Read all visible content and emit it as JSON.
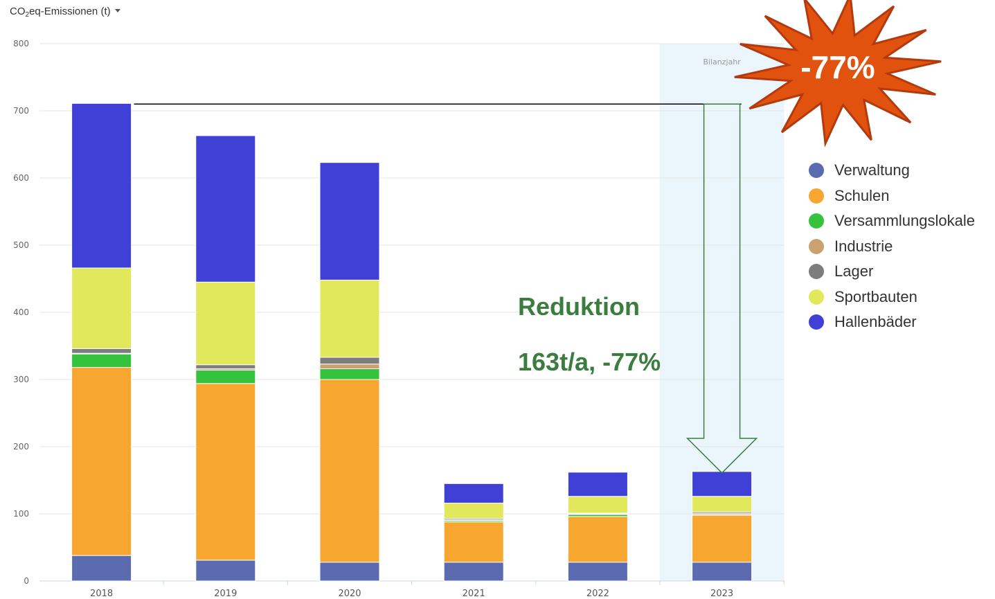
{
  "metric_selector": {
    "prefix": "CO",
    "subscript": "2",
    "suffix": "eq-Emissionen (t)"
  },
  "colors": {
    "Verwaltung": "#5c6bb0",
    "Schulen": "#f7a730",
    "Versammlungslokale": "#35c23d",
    "Industrie": "#c9a26f",
    "Lager": "#7d7d7d",
    "Sportbauten": "#e1e85c",
    "Hallenbäder": "#4040d6",
    "highlight_band": "#eaf6fb",
    "annotation_green": "#3a7d3e",
    "starburst": "#e2520f",
    "starburst_border": "#b23a0e"
  },
  "annotation": {
    "starburst_text": "-77%",
    "reduction_title": "Reduktion",
    "reduction_value": "163t/a, -77%",
    "reference_value": 710
  },
  "chart_data": {
    "type": "bar",
    "stacked": true,
    "categories": [
      "2018",
      "2019",
      "2020",
      "2021",
      "2022",
      "2023"
    ],
    "highlight": {
      "category": "2023",
      "label": "Bilanzjahr"
    },
    "ylim": [
      0,
      800
    ],
    "yticks": [
      0,
      100,
      200,
      300,
      400,
      500,
      600,
      700,
      800
    ],
    "grid": true,
    "legend_position": "right",
    "series": [
      {
        "name": "Verwaltung",
        "values": [
          38,
          31,
          28,
          28,
          28,
          28
        ]
      },
      {
        "name": "Schulen",
        "values": [
          280,
          263,
          272,
          60,
          68,
          70
        ]
      },
      {
        "name": "Versammlungslokale",
        "values": [
          20,
          20,
          16,
          2,
          3,
          1
        ]
      },
      {
        "name": "Industrie",
        "values": [
          1,
          2,
          7,
          1,
          1,
          2
        ]
      },
      {
        "name": "Lager",
        "values": [
          7,
          6,
          10,
          2,
          1,
          2
        ]
      },
      {
        "name": "Sportbauten",
        "values": [
          120,
          123,
          115,
          23,
          25,
          23
        ]
      },
      {
        "name": "Hallenbäder",
        "values": [
          245,
          218,
          175,
          29,
          36,
          37
        ]
      }
    ]
  }
}
